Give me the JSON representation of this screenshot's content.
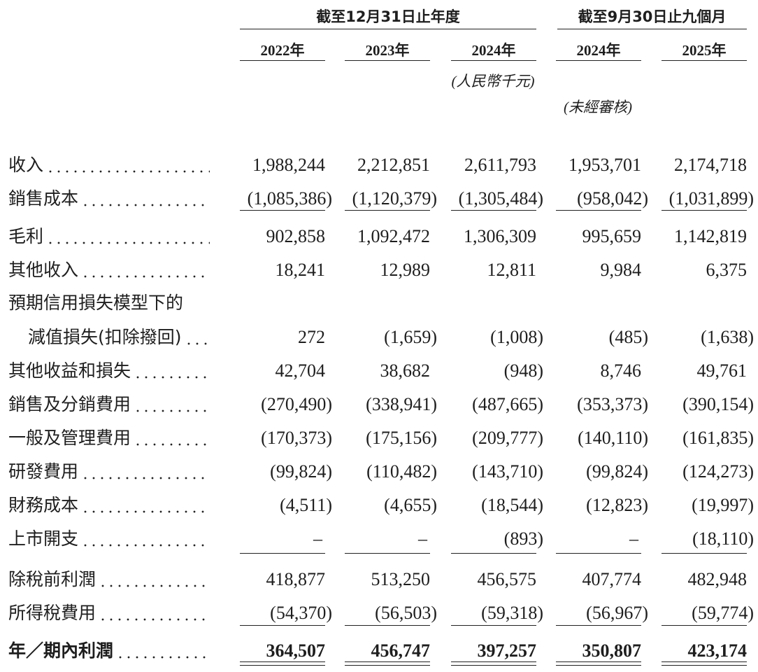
{
  "header": {
    "group_headers": [
      "截至12月31日止年度",
      "截至9月30日止九個月"
    ],
    "years": [
      "2022年",
      "2023年",
      "2024年",
      "2024年",
      "2025年"
    ],
    "currency_note": "(人民幣千元)",
    "unaudited_note": "(未經審核)"
  },
  "table": {
    "rows": [
      {
        "label": "收入",
        "cells": [
          "1,988,244",
          "2,212,851",
          "2,611,793",
          "1,953,701",
          "2,174,718"
        ]
      },
      {
        "label": "銷售成本",
        "cells": [
          "(1,085,386)",
          "(1,120,379)",
          "(1,305,484)",
          "(958,042)",
          "(1,031,899)"
        ]
      },
      {
        "label": "毛利",
        "cells": [
          "902,858",
          "1,092,472",
          "1,306,309",
          "995,659",
          "1,142,819"
        ]
      },
      {
        "label": "其他收入",
        "cells": [
          "18,241",
          "12,989",
          "12,811",
          "9,984",
          "6,375"
        ]
      },
      {
        "label": "預期信用損失模型下的",
        "cells": []
      },
      {
        "label": "減值損失(扣除撥回)",
        "cells": [
          "272",
          "(1,659)",
          "(1,008)",
          "(485)",
          "(1,638)"
        ]
      },
      {
        "label": "其他收益和損失",
        "cells": [
          "42,704",
          "38,682",
          "(948)",
          "8,746",
          "49,761"
        ]
      },
      {
        "label": "銷售及分銷費用",
        "cells": [
          "(270,490)",
          "(338,941)",
          "(487,665)",
          "(353,373)",
          "(390,154)"
        ]
      },
      {
        "label": "一般及管理費用",
        "cells": [
          "(170,373)",
          "(175,156)",
          "(209,777)",
          "(140,110)",
          "(161,835)"
        ]
      },
      {
        "label": "研發費用",
        "cells": [
          "(99,824)",
          "(110,482)",
          "(143,710)",
          "(99,824)",
          "(124,273)"
        ]
      },
      {
        "label": "財務成本",
        "cells": [
          "(4,511)",
          "(4,655)",
          "(18,544)",
          "(12,823)",
          "(19,997)"
        ]
      },
      {
        "label": "上市開支",
        "cells": [
          "–",
          "–",
          "(893)",
          "–",
          "(18,110)"
        ]
      },
      {
        "label": "除稅前利潤",
        "cells": [
          "418,877",
          "513,250",
          "456,575",
          "407,774",
          "482,948"
        ]
      },
      {
        "label": "所得稅費用",
        "cells": [
          "(54,370)",
          "(56,503)",
          "(59,318)",
          "(56,967)",
          "(59,774)"
        ]
      },
      {
        "label": "年／期內利潤",
        "cells": [
          "364,507",
          "456,747",
          "397,257",
          "350,807",
          "423,174"
        ]
      }
    ]
  }
}
